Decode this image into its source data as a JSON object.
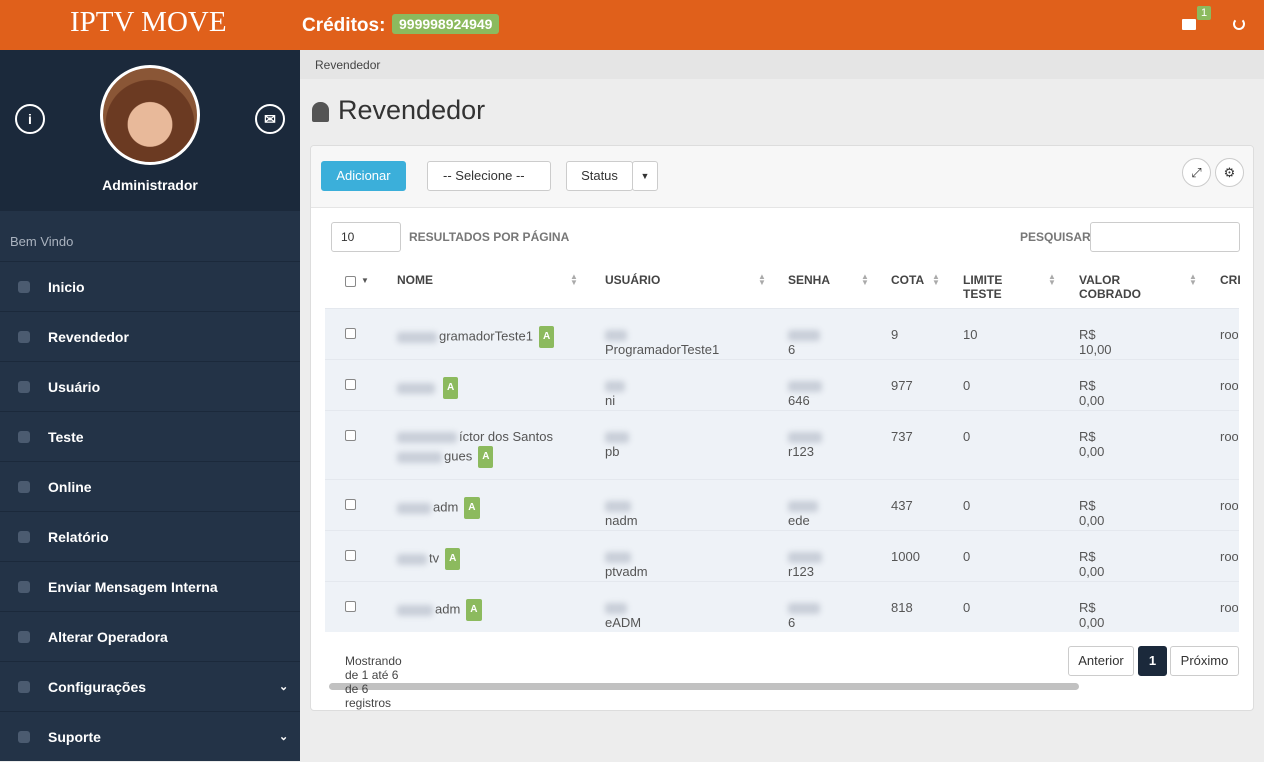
{
  "header": {
    "logo": "IPTV MOVE",
    "credits_label": "Créditos:",
    "credits": "999998924949",
    "mail_badge": "1"
  },
  "sidebar": {
    "user": "Administrador",
    "welcome": "Bem Vindo",
    "menu": [
      {
        "label": "Inicio"
      },
      {
        "label": "Revendedor"
      },
      {
        "label": "Usuário"
      },
      {
        "label": "Teste"
      },
      {
        "label": "Online"
      },
      {
        "label": "Relatório"
      },
      {
        "label": "Enviar Mensagem Interna"
      },
      {
        "label": "Alterar Operadora"
      },
      {
        "label": "Configurações",
        "submenu": true
      },
      {
        "label": "Suporte",
        "submenu": true
      }
    ]
  },
  "breadcrumb": "Revendedor",
  "page_title": "Revendedor",
  "toolbar": {
    "add": "Adicionar",
    "select": "-- Selecione --",
    "status": "Status"
  },
  "table_controls": {
    "page_size": "10",
    "per_page": "RESULTADOS POR PÁGINA",
    "search": "PESQUISAR"
  },
  "table": {
    "columns": [
      "NOME",
      "USUÁRIO",
      "SENHA",
      "COTA",
      "LIMITE TESTE",
      "VALOR COBRADO",
      "CRI"
    ],
    "rows": [
      {
        "name": [
          "gramadorTeste1"
        ],
        "badge": "A",
        "user": "ProgramadorTeste1",
        "senha": "6",
        "cota": 9,
        "limite": 10,
        "valor": "R$ 10,00",
        "cri": "roo"
      },
      {
        "name": [
          ""
        ],
        "badge": "A",
        "user": "ni",
        "senha": "646",
        "cota": 977,
        "limite": 0,
        "valor": "R$ 0,00",
        "cri": "roo"
      },
      {
        "name": [
          "íctor dos Santos",
          "gues"
        ],
        "badge": "A",
        "user": "pb",
        "senha": "r123",
        "cota": 737,
        "limite": 0,
        "valor": "R$ 0,00",
        "cri": "roo"
      },
      {
        "name": [
          "adm"
        ],
        "badge": "A",
        "user": "nadm",
        "senha": "ede",
        "cota": 437,
        "limite": 0,
        "valor": "R$ 0,00",
        "cri": "roo"
      },
      {
        "name": [
          "tv"
        ],
        "badge": "A",
        "user": "ptvadm",
        "senha": "r123",
        "cota": 1000,
        "limite": 0,
        "valor": "R$ 0,00",
        "cri": "roo"
      },
      {
        "name": [
          "adm"
        ],
        "badge": "A",
        "user": "eADM",
        "senha": "6",
        "cota": 818,
        "limite": 0,
        "valor": "R$ 0,00",
        "cri": "roo"
      }
    ]
  },
  "footer": {
    "info": "Mostrando de 1 até 6 de 6 registros",
    "prev": "Anterior",
    "page": "1",
    "next": "Próximo"
  }
}
